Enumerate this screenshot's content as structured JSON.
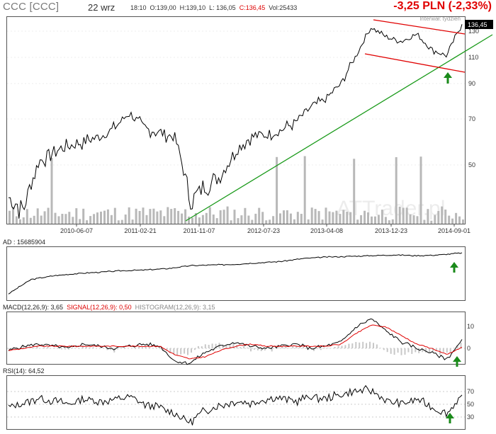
{
  "header": {
    "ticker": "CCC [CCC]",
    "date": "22 wrz",
    "time": "18:10",
    "open": "O:139,00",
    "high": "H:139,10",
    "low": "L: 136,05",
    "close": "C:136,45",
    "volume": "Vol:25433",
    "change": "-3,25 PLN (-2,33%)",
    "interval": "Interwał: tydzień"
  },
  "price_label": "136,45",
  "watermark": "ATTrader.pl",
  "indicators": {
    "ad_label": "AD : 15685904",
    "macd_label": "MACD(12,26,9): 3,65",
    "signal_label": "SIGNAL(12,26,9): 0,50",
    "histogram_label": "HISTOGRAM(12,26,9): 3,15",
    "rsi_label": "RSI(14): 64,52"
  },
  "colors": {
    "price": "#000000",
    "volume": "#b8b8b8",
    "trend_support": "#1a9a1a",
    "channel": "#e00000",
    "signal": "#e00000",
    "arrow": "#1a8a1a",
    "negative_change": "#e00000"
  },
  "chart_data": [
    {
      "type": "line",
      "title": "CCC [CCC]",
      "x": [
        "2009-11",
        "2010-01",
        "2010-03",
        "2010-05",
        "2010-07",
        "2010-09",
        "2010-11",
        "2011-01",
        "2011-03",
        "2011-05",
        "2011-07",
        "2011-09",
        "2011-10",
        "2011-11",
        "2012-01",
        "2012-03",
        "2012-05",
        "2012-07",
        "2012-09",
        "2012-11",
        "2013-01",
        "2013-03",
        "2013-05",
        "2013-07",
        "2013-09",
        "2013-11",
        "2014-01",
        "2014-03",
        "2014-05",
        "2014-07",
        "2014-09"
      ],
      "series": [
        {
          "values": [
            31,
            28,
            42,
            46,
            48,
            50,
            52,
            56,
            64,
            56,
            54,
            52,
            30,
            34,
            37,
            46,
            52,
            53,
            55,
            59,
            67,
            72,
            82,
            104,
            133,
            122,
            118,
            125,
            110,
            104,
            136
          ]
        }
      ],
      "ylim": [
        26,
        140
      ],
      "y_scale": "log",
      "y_ticks": [
        50,
        70,
        90,
        110,
        130
      ],
      "x_tick_labels": [
        "2010-06-07",
        "2011-02-21",
        "2011-11-07",
        "2012-07-23",
        "2013-04-08",
        "2013-12-23",
        "2014-09-01"
      ],
      "last_value": 136.45
    },
    {
      "type": "line",
      "title": "AD",
      "series": [
        {
          "name": "AD",
          "values": [
            10,
            12,
            12.5,
            12.8,
            13.0,
            13.2,
            13.3,
            13.5,
            13.9,
            14.0,
            14.1,
            14.3,
            14.5,
            14.9,
            15.1,
            15.2,
            15.3,
            15.4,
            15.3,
            15.4,
            15.69
          ]
        }
      ],
      "last_value": 15685904
    },
    {
      "type": "line",
      "title": "MACD",
      "y_ticks": [
        0,
        10
      ],
      "series": [
        {
          "name": "MACD(12,26,9)",
          "values": [
            -1,
            1,
            2,
            1,
            0,
            2,
            1,
            0,
            1,
            2,
            1,
            -6,
            -7,
            -2,
            1,
            3,
            1,
            0,
            1,
            2,
            0,
            1,
            3,
            10,
            14,
            8,
            3,
            0,
            -2,
            -5,
            3.65
          ]
        },
        {
          "name": "SIGNAL(12,26,9)",
          "values": [
            -1,
            0,
            1,
            1,
            1,
            1,
            1,
            1,
            1,
            1,
            1,
            -3,
            -5,
            -4,
            -1,
            1,
            2,
            1,
            1,
            1,
            1,
            1,
            2,
            7,
            11,
            10,
            6,
            2,
            0,
            -3,
            0.5
          ]
        }
      ]
    },
    {
      "type": "line",
      "title": "RSI",
      "y_ticks": [
        30,
        50,
        70
      ],
      "series": [
        {
          "name": "RSI(14)",
          "values": [
            45,
            52,
            60,
            55,
            50,
            58,
            55,
            57,
            62,
            50,
            45,
            35,
            22,
            40,
            48,
            55,
            52,
            58,
            60,
            55,
            62,
            58,
            65,
            70,
            72,
            55,
            50,
            58,
            45,
            35,
            64.52
          ]
        }
      ],
      "last_value": 64.52
    }
  ]
}
